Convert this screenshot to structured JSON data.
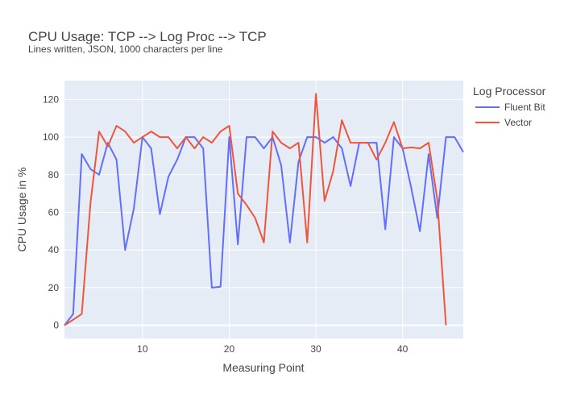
{
  "chart_data": {
    "type": "line",
    "title": "CPU Usage: TCP --> Log Proc --> TCP",
    "subtitle": "Lines written, JSON, 1000 characters per line",
    "xlabel": "Measuring Point",
    "ylabel": "CPU Usage in %",
    "xlim": [
      1,
      47
    ],
    "ylim": [
      -7,
      130
    ],
    "xticks": [
      10,
      20,
      30,
      40
    ],
    "yticks": [
      0,
      20,
      40,
      60,
      80,
      100,
      120
    ],
    "grid": true,
    "legend": {
      "title": "Log Processor",
      "placement": "right"
    },
    "series": [
      {
        "name": "Fluent Bit",
        "color": "#636efa",
        "x": [
          1,
          2,
          3,
          4,
          5,
          6,
          7,
          8,
          9,
          10,
          11,
          12,
          13,
          14,
          15,
          16,
          17,
          18,
          19,
          20,
          21,
          22,
          23,
          24,
          25,
          26,
          27,
          28,
          29,
          30,
          31,
          32,
          33,
          34,
          35,
          36,
          37,
          38,
          39,
          40,
          41,
          42,
          43,
          44,
          45,
          46,
          47
        ],
        "y": [
          0,
          6,
          91,
          83,
          80,
          97,
          88,
          40,
          62,
          100,
          94,
          59,
          79,
          88,
          100,
          100,
          94,
          20,
          20.5,
          100,
          43,
          100,
          100,
          94,
          100,
          85,
          44,
          87,
          100,
          100,
          97,
          100,
          94,
          74,
          97,
          97,
          97,
          51,
          100,
          94,
          73,
          50,
          91,
          57,
          100,
          100,
          92
        ]
      },
      {
        "name": "Vector",
        "color": "#ef553b",
        "x": [
          1,
          2,
          3,
          4,
          5,
          6,
          7,
          8,
          9,
          10,
          11,
          12,
          13,
          14,
          15,
          16,
          17,
          18,
          19,
          20,
          21,
          22,
          23,
          24,
          25,
          26,
          27,
          28,
          29,
          30,
          31,
          32,
          33,
          34,
          35,
          36,
          37,
          38,
          39,
          40,
          41,
          42,
          43,
          44,
          45
        ],
        "y": [
          0,
          3,
          6,
          65,
          103,
          95,
          106,
          103,
          97,
          100,
          103,
          100,
          100,
          94,
          100,
          94,
          100,
          97,
          103,
          106,
          70,
          64,
          57,
          44,
          103,
          97,
          94,
          97,
          44,
          123,
          66,
          82,
          109,
          97,
          97,
          97,
          88,
          97,
          108,
          94,
          94.5,
          94,
          97,
          67,
          0
        ]
      }
    ]
  }
}
